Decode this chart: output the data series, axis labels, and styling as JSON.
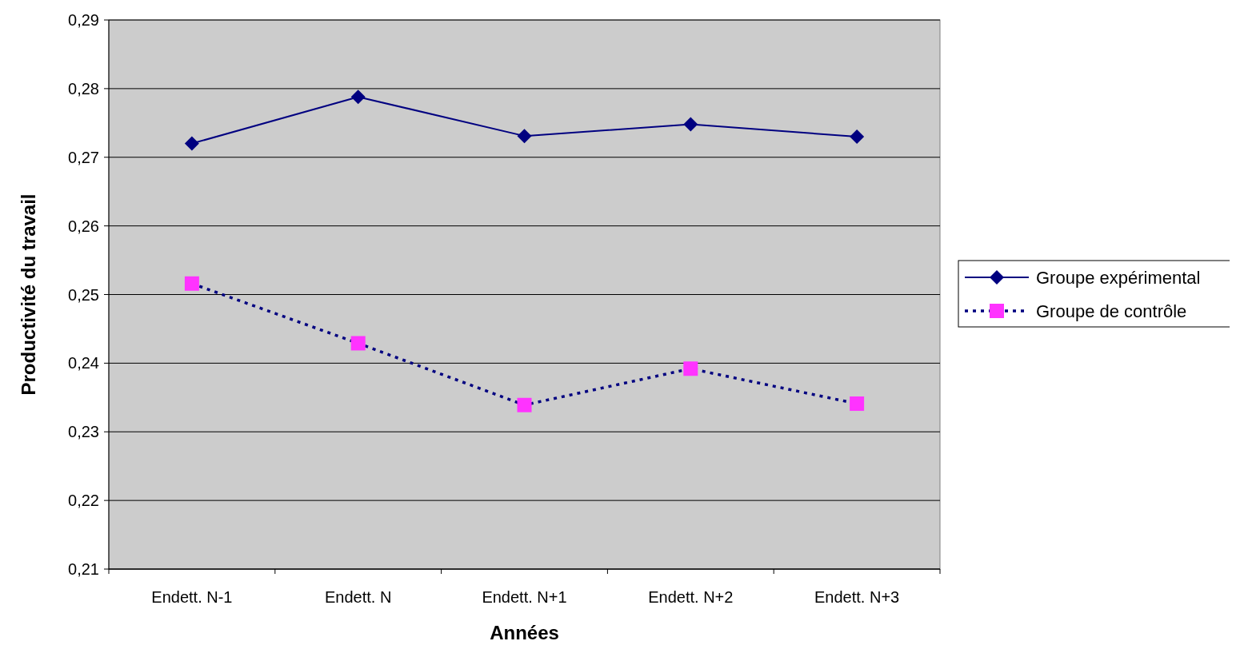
{
  "chart_data": {
    "type": "line",
    "xlabel": "Années",
    "ylabel": "Productivité du travail",
    "categories": [
      "Endett. N-1",
      "Endett. N",
      "Endett. N+1",
      "Endett. N+2",
      "Endett. N+3"
    ],
    "series": [
      {
        "name": "Groupe expérimental",
        "color": "#000080",
        "marker": "diamond",
        "line_style": "solid",
        "values": [
          0.272,
          0.2788,
          0.2731,
          0.2748,
          0.273
        ]
      },
      {
        "name": "Groupe de contrôle",
        "color": "#000080",
        "colors": [
          "#ff33ff",
          "#ff33ff",
          "#ff33ff",
          "#ff33ff",
          "#ff33ff"
        ],
        "marker": "square",
        "line_style": "dotted",
        "values": [
          0.2516,
          0.2429,
          0.2339,
          0.2392,
          0.2341
        ]
      }
    ],
    "ylim": [
      0.21,
      0.29
    ],
    "yticks": [
      {
        "value": 0.21,
        "label": "0,21"
      },
      {
        "value": 0.22,
        "label": "0,22"
      },
      {
        "value": 0.23,
        "label": "0,23"
      },
      {
        "value": 0.24,
        "label": "0,24"
      },
      {
        "value": 0.25,
        "label": "0,25"
      },
      {
        "value": 0.26,
        "label": "0,26"
      },
      {
        "value": 0.27,
        "label": "0,27"
      },
      {
        "value": 0.28,
        "label": "0,28"
      },
      {
        "value": 0.29,
        "label": "0,29"
      }
    ],
    "grid": "y",
    "legend": "right"
  }
}
